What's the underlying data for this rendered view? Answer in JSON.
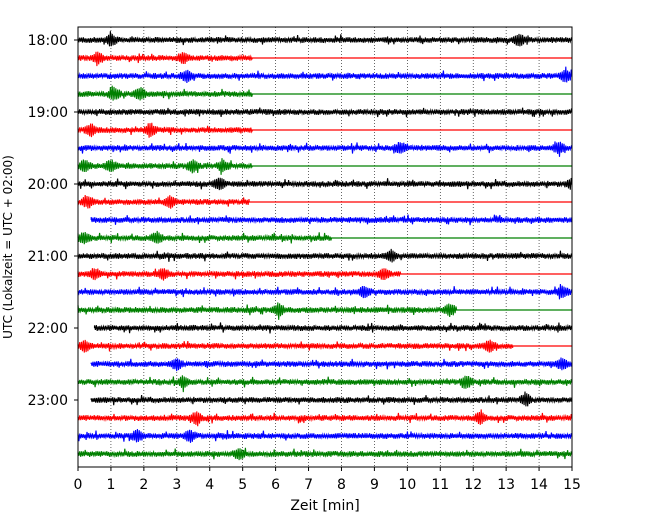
{
  "chart_data": {
    "type": "line",
    "subtype": "helicorder",
    "title": "",
    "xlabel": "Zeit  [min]",
    "ylabel": "UTC (Lokalzeit = UTC + 02:00)",
    "xlim": [
      0,
      15
    ],
    "x_ticks": [
      "0",
      "1",
      "2",
      "3",
      "4",
      "5",
      "6",
      "7",
      "8",
      "9",
      "10",
      "11",
      "12",
      "13",
      "14",
      "15"
    ],
    "grid": "vertical dotted lines at each minute",
    "hour_labels": [
      "18:00",
      "19:00",
      "20:00",
      "21:00",
      "22:00",
      "23:00"
    ],
    "row_colors": [
      "#000000",
      "#ff0000",
      "#0000ff",
      "#008000"
    ],
    "rows": [
      {
        "start": "18:00",
        "color": "#000000",
        "trace_start_min": 0.0,
        "active_end_min": 15
      },
      {
        "start": "18:15",
        "color": "#ff0000",
        "trace_start_min": 0.0,
        "active_end_min": 5.3
      },
      {
        "start": "18:30",
        "color": "#0000ff",
        "trace_start_min": 0.0,
        "active_end_min": 15
      },
      {
        "start": "18:45",
        "color": "#008000",
        "trace_start_min": 0.0,
        "active_end_min": 5.3
      },
      {
        "start": "19:00",
        "color": "#000000",
        "trace_start_min": 0.0,
        "active_end_min": 15
      },
      {
        "start": "19:15",
        "color": "#ff0000",
        "trace_start_min": 0.0,
        "active_end_min": 5.3
      },
      {
        "start": "19:30",
        "color": "#0000ff",
        "trace_start_min": 0.0,
        "active_end_min": 15
      },
      {
        "start": "19:45",
        "color": "#008000",
        "trace_start_min": 0.0,
        "active_end_min": 5.3
      },
      {
        "start": "20:00",
        "color": "#000000",
        "trace_start_min": 0.0,
        "active_end_min": 15
      },
      {
        "start": "20:15",
        "color": "#ff0000",
        "trace_start_min": 0.0,
        "active_end_min": 5.2
      },
      {
        "start": "20:30",
        "color": "#0000ff",
        "trace_start_min": 0.4,
        "active_end_min": 15
      },
      {
        "start": "20:45",
        "color": "#008000",
        "trace_start_min": 0.0,
        "active_end_min": 7.7
      },
      {
        "start": "21:00",
        "color": "#000000",
        "trace_start_min": 0.0,
        "active_end_min": 15
      },
      {
        "start": "21:15",
        "color": "#ff0000",
        "trace_start_min": 0.0,
        "active_end_min": 9.8
      },
      {
        "start": "21:30",
        "color": "#0000ff",
        "trace_start_min": 0.0,
        "active_end_min": 15
      },
      {
        "start": "21:45",
        "color": "#008000",
        "trace_start_min": 0.0,
        "active_end_min": 11.5
      },
      {
        "start": "22:00",
        "color": "#000000",
        "trace_start_min": 0.5,
        "active_end_min": 15
      },
      {
        "start": "22:15",
        "color": "#ff0000",
        "trace_start_min": 0.0,
        "active_end_min": 13.2
      },
      {
        "start": "22:30",
        "color": "#0000ff",
        "trace_start_min": 0.4,
        "active_end_min": 15
      },
      {
        "start": "22:45",
        "color": "#008000",
        "trace_start_min": 0.0,
        "active_end_min": 15
      },
      {
        "start": "23:00",
        "color": "#000000",
        "trace_start_min": 0.4,
        "active_end_min": 15
      },
      {
        "start": "23:15",
        "color": "#ff0000",
        "trace_start_min": 0.0,
        "active_end_min": 15
      },
      {
        "start": "23:30",
        "color": "#0000ff",
        "trace_start_min": 0.0,
        "active_end_min": 15
      },
      {
        "start": "23:45",
        "color": "#008000",
        "trace_start_min": 0.0,
        "active_end_min": 15
      }
    ],
    "events": [
      {
        "row": 0,
        "min": 1.0
      },
      {
        "row": 0,
        "min": 13.4
      },
      {
        "row": 1,
        "min": 0.6
      },
      {
        "row": 1,
        "min": 3.2
      },
      {
        "row": 2,
        "min": 3.3
      },
      {
        "row": 2,
        "min": 14.8
      },
      {
        "row": 3,
        "min": 1.1
      },
      {
        "row": 3,
        "min": 1.9
      },
      {
        "row": 5,
        "min": 0.4
      },
      {
        "row": 5,
        "min": 2.2
      },
      {
        "row": 6,
        "min": 9.8
      },
      {
        "row": 6,
        "min": 14.6
      },
      {
        "row": 7,
        "min": 0.2
      },
      {
        "row": 7,
        "min": 1.0
      },
      {
        "row": 7,
        "min": 3.5
      },
      {
        "row": 7,
        "min": 4.4
      },
      {
        "row": 8,
        "min": 4.3
      },
      {
        "row": 8,
        "min": 15.0
      },
      {
        "row": 9,
        "min": 0.3
      },
      {
        "row": 9,
        "min": 2.8
      },
      {
        "row": 11,
        "min": 0.2
      },
      {
        "row": 11,
        "min": 2.4
      },
      {
        "row": 12,
        "min": 9.5
      },
      {
        "row": 13,
        "min": 0.5
      },
      {
        "row": 13,
        "min": 2.6
      },
      {
        "row": 13,
        "min": 9.3
      },
      {
        "row": 14,
        "min": 8.7
      },
      {
        "row": 14,
        "min": 14.7
      },
      {
        "row": 15,
        "min": 6.1
      },
      {
        "row": 15,
        "min": 11.3
      },
      {
        "row": 17,
        "min": 0.2
      },
      {
        "row": 17,
        "min": 12.5
      },
      {
        "row": 18,
        "min": 3.0
      },
      {
        "row": 18,
        "min": 14.7
      },
      {
        "row": 19,
        "min": 3.2
      },
      {
        "row": 19,
        "min": 11.8
      },
      {
        "row": 20,
        "min": 13.6
      },
      {
        "row": 21,
        "min": 3.6
      },
      {
        "row": 21,
        "min": 12.2
      },
      {
        "row": 22,
        "min": 1.8
      },
      {
        "row": 22,
        "min": 3.4
      },
      {
        "row": 23,
        "min": 4.9
      }
    ]
  }
}
